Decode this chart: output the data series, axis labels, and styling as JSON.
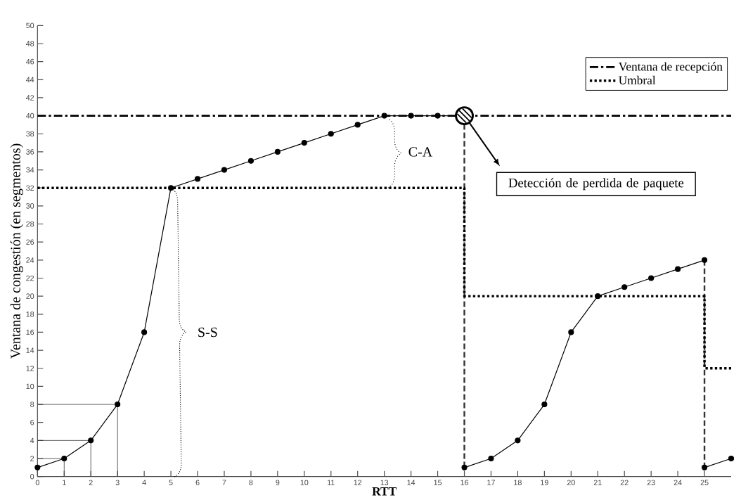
{
  "chart_data": {
    "type": "line",
    "xlabel": "RTT",
    "ylabel": "Ventana de congestión (en segmentos)",
    "xlim": [
      0,
      26
    ],
    "ylim": [
      0,
      50
    ],
    "xticks": [
      0,
      1,
      2,
      3,
      4,
      5,
      6,
      7,
      8,
      9,
      10,
      11,
      12,
      13,
      14,
      15,
      16,
      17,
      18,
      19,
      20,
      21,
      22,
      23,
      24,
      25
    ],
    "yticks": [
      0,
      2,
      4,
      6,
      8,
      10,
      12,
      14,
      16,
      18,
      20,
      22,
      24,
      26,
      28,
      30,
      32,
      34,
      36,
      38,
      40,
      42,
      44,
      46,
      48,
      50
    ],
    "grid": false,
    "legend": "top right",
    "series": [
      {
        "color": "#000000",
        "marker": "circle",
        "line_style": "solid",
        "x": [
          0,
          1,
          2,
          3,
          4,
          5,
          6,
          7,
          8,
          9,
          10,
          11,
          12,
          13,
          14,
          15,
          16
        ],
        "values": [
          1,
          2,
          4,
          8,
          16,
          32,
          33,
          34,
          35,
          36,
          37,
          38,
          39,
          40,
          40,
          40,
          40
        ]
      },
      {
        "color": "#000000",
        "marker": "circle",
        "line_style": "solid",
        "x": [
          16,
          17,
          18,
          19,
          20,
          21,
          22,
          23,
          24,
          25
        ],
        "values": [
          1,
          2,
          4,
          8,
          16,
          20,
          21,
          22,
          23,
          24
        ]
      },
      {
        "color": "#000000",
        "marker": "circle",
        "line_style": "solid",
        "x": [
          25,
          26
        ],
        "values": [
          1,
          2
        ]
      },
      {
        "color": "#333333",
        "line_style": "dashed",
        "x": [
          16,
          16
        ],
        "values": [
          40,
          1
        ]
      },
      {
        "color": "#333333",
        "line_style": "dashed",
        "x": [
          25,
          25
        ],
        "values": [
          24,
          1
        ]
      },
      {
        "color": "#333333",
        "marker": "none",
        "line_style": "solid",
        "x": [
          0,
          1,
          1
        ],
        "values": [
          2,
          2,
          0
        ]
      },
      {
        "color": "#333333",
        "marker": "none",
        "line_style": "solid",
        "x": [
          0,
          2,
          2
        ],
        "values": [
          4,
          4,
          0
        ]
      },
      {
        "color": "#333333",
        "marker": "none",
        "line_style": "solid",
        "x": [
          0,
          3,
          3
        ],
        "values": [
          8,
          8,
          0
        ]
      },
      {
        "name": "Umbral",
        "type": "step",
        "color": "#000000",
        "marker": "none",
        "line_style": "dotted",
        "x": [
          0,
          16,
          25,
          26
        ],
        "values": [
          32,
          20,
          12,
          12
        ]
      }
    ],
    "ref_lines": [
      {
        "axis": "y",
        "value": 40,
        "label": "Ventana de recepción",
        "color": "#000000",
        "line_style": "dashdot"
      }
    ],
    "annotations": [
      "C-A",
      "S-S",
      "Detección de perdida de paquete"
    ]
  }
}
